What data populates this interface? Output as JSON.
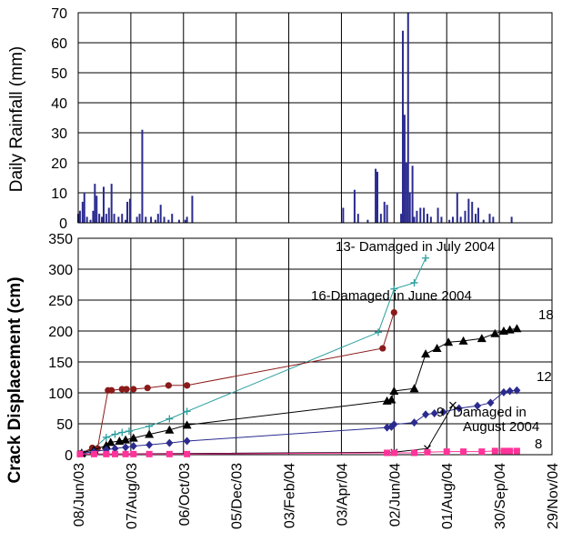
{
  "chart_data": [
    {
      "type": "bar",
      "ylabel": "Daily Rainfall (mm)",
      "ylim": [
        0,
        70
      ],
      "yticks": [
        "0",
        "10",
        "20",
        "30",
        "40",
        "50",
        "60",
        "70"
      ],
      "grid": true,
      "bar_color": "#2b2b8f",
      "bars": [
        {
          "x": "2003-06-08",
          "y": 3
        },
        {
          "x": "2003-06-10",
          "y": 4
        },
        {
          "x": "2003-06-13",
          "y": 7
        },
        {
          "x": "2003-06-15",
          "y": 10
        },
        {
          "x": "2003-06-18",
          "y": 2
        },
        {
          "x": "2003-06-22",
          "y": 1
        },
        {
          "x": "2003-06-25",
          "y": 4
        },
        {
          "x": "2003-06-27",
          "y": 13
        },
        {
          "x": "2003-06-29",
          "y": 9
        },
        {
          "x": "2003-07-02",
          "y": 3
        },
        {
          "x": "2003-07-05",
          "y": 2
        },
        {
          "x": "2003-07-07",
          "y": 12
        },
        {
          "x": "2003-07-10",
          "y": 3
        },
        {
          "x": "2003-07-13",
          "y": 5
        },
        {
          "x": "2003-07-16",
          "y": 13
        },
        {
          "x": "2003-07-19",
          "y": 3
        },
        {
          "x": "2003-07-24",
          "y": 2
        },
        {
          "x": "2003-07-28",
          "y": 3
        },
        {
          "x": "2003-08-01",
          "y": 1
        },
        {
          "x": "2003-08-03",
          "y": 7
        },
        {
          "x": "2003-08-06",
          "y": 8
        },
        {
          "x": "2003-08-14",
          "y": 2
        },
        {
          "x": "2003-08-17",
          "y": 3
        },
        {
          "x": "2003-08-20",
          "y": 31
        },
        {
          "x": "2003-08-24",
          "y": 2
        },
        {
          "x": "2003-08-30",
          "y": 2
        },
        {
          "x": "2003-09-04",
          "y": 1
        },
        {
          "x": "2003-09-07",
          "y": 3
        },
        {
          "x": "2003-09-10",
          "y": 6
        },
        {
          "x": "2003-09-14",
          "y": 2
        },
        {
          "x": "2003-09-19",
          "y": 1
        },
        {
          "x": "2003-09-23",
          "y": 3
        },
        {
          "x": "2003-10-01",
          "y": 1
        },
        {
          "x": "2003-10-08",
          "y": 1
        },
        {
          "x": "2003-10-10",
          "y": 2
        },
        {
          "x": "2003-10-16",
          "y": 9
        },
        {
          "x": "2004-04-05",
          "y": 5
        },
        {
          "x": "2004-04-18",
          "y": 11
        },
        {
          "x": "2004-04-22",
          "y": 3
        },
        {
          "x": "2004-05-03",
          "y": 1
        },
        {
          "x": "2004-05-12",
          "y": 18
        },
        {
          "x": "2004-05-14",
          "y": 17
        },
        {
          "x": "2004-05-18",
          "y": 3
        },
        {
          "x": "2004-05-22",
          "y": 7
        },
        {
          "x": "2004-05-25",
          "y": 6
        },
        {
          "x": "2004-06-10",
          "y": 3
        },
        {
          "x": "2004-06-12",
          "y": 64
        },
        {
          "x": "2004-06-14",
          "y": 36
        },
        {
          "x": "2004-06-16",
          "y": 20
        },
        {
          "x": "2004-06-18",
          "y": 70
        },
        {
          "x": "2004-06-20",
          "y": 10
        },
        {
          "x": "2004-06-23",
          "y": 19
        },
        {
          "x": "2004-06-25",
          "y": 2
        },
        {
          "x": "2004-06-28",
          "y": 4
        },
        {
          "x": "2004-07-02",
          "y": 5
        },
        {
          "x": "2004-07-06",
          "y": 5
        },
        {
          "x": "2004-07-10",
          "y": 3
        },
        {
          "x": "2004-07-14",
          "y": 2
        },
        {
          "x": "2004-07-22",
          "y": 5
        },
        {
          "x": "2004-07-26",
          "y": 2
        },
        {
          "x": "2004-08-04",
          "y": 1
        },
        {
          "x": "2004-08-08",
          "y": 2
        },
        {
          "x": "2004-08-13",
          "y": 10
        },
        {
          "x": "2004-08-17",
          "y": 2
        },
        {
          "x": "2004-08-22",
          "y": 4
        },
        {
          "x": "2004-08-26",
          "y": 8
        },
        {
          "x": "2004-08-30",
          "y": 7
        },
        {
          "x": "2004-09-03",
          "y": 3
        },
        {
          "x": "2004-09-06",
          "y": 5
        },
        {
          "x": "2004-09-12",
          "y": 1
        },
        {
          "x": "2004-09-19",
          "y": 3
        },
        {
          "x": "2004-09-23",
          "y": 2
        },
        {
          "x": "2004-10-14",
          "y": 2
        }
      ]
    },
    {
      "type": "line",
      "ylabel": "Crack Displacement (cm)",
      "ylim": [
        0,
        350
      ],
      "yticks": [
        "0",
        "50",
        "100",
        "150",
        "200",
        "250",
        "300",
        "350"
      ],
      "xlim": [
        "2003-06-08",
        "2004-11-29"
      ],
      "xticks": [
        {
          "date": "2003-06-08",
          "label": "08/Jun/03"
        },
        {
          "date": "2003-08-07",
          "label": "07/Aug/03"
        },
        {
          "date": "2003-10-06",
          "label": "06/Oct/03"
        },
        {
          "date": "2003-12-05",
          "label": "05/Dec/03"
        },
        {
          "date": "2004-02-03",
          "label": "03/Feb/04"
        },
        {
          "date": "2004-04-03",
          "label": "03/Apr/04"
        },
        {
          "date": "2004-06-02",
          "label": "02/Jun/04"
        },
        {
          "date": "2004-08-01",
          "label": "01/Aug/04"
        },
        {
          "date": "2004-09-30",
          "label": "30/Sep/04"
        },
        {
          "date": "2004-11-29",
          "label": "29/Nov/04"
        }
      ],
      "grid": true,
      "series": [
        {
          "name": "13- Damaged  in July 2004",
          "color": "#2a9d9d",
          "marker": "plus",
          "points": [
            {
              "x": "2003-06-12",
              "y": 3
            },
            {
              "x": "2003-06-24",
              "y": 8
            },
            {
              "x": "2003-07-10",
              "y": 28
            },
            {
              "x": "2003-07-20",
              "y": 33
            },
            {
              "x": "2003-07-28",
              "y": 36
            },
            {
              "x": "2003-08-05",
              "y": 38
            },
            {
              "x": "2003-08-28",
              "y": 46
            },
            {
              "x": "2003-09-20",
              "y": 58
            },
            {
              "x": "2003-10-10",
              "y": 70
            },
            {
              "x": "2004-05-15",
              "y": 198
            },
            {
              "x": "2004-06-02",
              "y": 268
            },
            {
              "x": "2004-06-25",
              "y": 278
            },
            {
              "x": "2004-07-08",
              "y": 318
            }
          ]
        },
        {
          "name": "16-Damaged in June 2004",
          "color": "#8b1a1a",
          "marker": "circle",
          "points": [
            {
              "x": "2003-06-11",
              "y": 2
            },
            {
              "x": "2003-06-24",
              "y": 11
            },
            {
              "x": "2003-06-30",
              "y": 10
            },
            {
              "x": "2003-07-12",
              "y": 104
            },
            {
              "x": "2003-07-16",
              "y": 104
            },
            {
              "x": "2003-07-28",
              "y": 106
            },
            {
              "x": "2003-08-02",
              "y": 106
            },
            {
              "x": "2003-08-10",
              "y": 106
            },
            {
              "x": "2003-08-26",
              "y": 108
            },
            {
              "x": "2003-09-19",
              "y": 112
            },
            {
              "x": "2003-10-10",
              "y": 112
            },
            {
              "x": "2004-05-20",
              "y": 172
            },
            {
              "x": "2004-06-02",
              "y": 230
            }
          ]
        },
        {
          "name": "18",
          "color": "#000000",
          "marker": "triangle",
          "points": [
            {
              "x": "2003-06-12",
              "y": 3
            },
            {
              "x": "2003-06-26",
              "y": 8
            },
            {
              "x": "2003-07-10",
              "y": 15
            },
            {
              "x": "2003-07-15",
              "y": 20
            },
            {
              "x": "2003-07-25",
              "y": 22
            },
            {
              "x": "2003-08-01",
              "y": 24
            },
            {
              "x": "2003-08-10",
              "y": 27
            },
            {
              "x": "2003-08-28",
              "y": 33
            },
            {
              "x": "2003-09-20",
              "y": 40
            },
            {
              "x": "2003-10-10",
              "y": 48
            },
            {
              "x": "2004-05-25",
              "y": 87
            },
            {
              "x": "2004-05-30",
              "y": 89
            },
            {
              "x": "2004-06-02",
              "y": 103
            },
            {
              "x": "2004-06-25",
              "y": 107
            },
            {
              "x": "2004-07-08",
              "y": 163
            },
            {
              "x": "2004-07-21",
              "y": 172
            },
            {
              "x": "2004-08-03",
              "y": 182
            },
            {
              "x": "2004-08-20",
              "y": 184
            },
            {
              "x": "2004-09-10",
              "y": 188
            },
            {
              "x": "2004-09-25",
              "y": 196
            },
            {
              "x": "2004-10-05",
              "y": 200
            },
            {
              "x": "2004-10-12",
              "y": 202
            },
            {
              "x": "2004-10-20",
              "y": 204
            }
          ]
        },
        {
          "name": "12",
          "color": "#2b2b8f",
          "marker": "diamond",
          "points": [
            {
              "x": "2003-06-12",
              "y": 2
            },
            {
              "x": "2003-06-26",
              "y": 5
            },
            {
              "x": "2003-07-10",
              "y": 8
            },
            {
              "x": "2003-07-20",
              "y": 10
            },
            {
              "x": "2003-08-01",
              "y": 12
            },
            {
              "x": "2003-08-10",
              "y": 14
            },
            {
              "x": "2003-08-28",
              "y": 16
            },
            {
              "x": "2003-09-20",
              "y": 19
            },
            {
              "x": "2003-10-10",
              "y": 22
            },
            {
              "x": "2004-05-25",
              "y": 44
            },
            {
              "x": "2004-05-30",
              "y": 45
            },
            {
              "x": "2004-06-02",
              "y": 49
            },
            {
              "x": "2004-06-25",
              "y": 52
            },
            {
              "x": "2004-07-08",
              "y": 65
            },
            {
              "x": "2004-07-18",
              "y": 67
            },
            {
              "x": "2004-07-28",
              "y": 69
            },
            {
              "x": "2004-08-15",
              "y": 75
            },
            {
              "x": "2004-09-05",
              "y": 79
            },
            {
              "x": "2004-09-20",
              "y": 84
            },
            {
              "x": "2004-10-05",
              "y": 101
            },
            {
              "x": "2004-10-12",
              "y": 103
            },
            {
              "x": "2004-10-20",
              "y": 104
            }
          ]
        },
        {
          "name": "9",
          "color": "#000000",
          "marker": "cross",
          "points": [
            {
              "x": "2003-06-12",
              "y": 1
            },
            {
              "x": "2004-06-02",
              "y": 4
            },
            {
              "x": "2004-07-10",
              "y": 10
            },
            {
              "x": "2004-08-08",
              "y": 80
            }
          ]
        },
        {
          "name": "8",
          "color": "#ff3399",
          "marker": "square",
          "points": [
            {
              "x": "2003-06-10",
              "y": 1
            },
            {
              "x": "2003-06-26",
              "y": 1
            },
            {
              "x": "2003-07-10",
              "y": 1
            },
            {
              "x": "2003-07-20",
              "y": 1
            },
            {
              "x": "2003-08-01",
              "y": 1
            },
            {
              "x": "2003-08-10",
              "y": 1
            },
            {
              "x": "2003-08-28",
              "y": 1
            },
            {
              "x": "2003-09-20",
              "y": 1
            },
            {
              "x": "2003-10-10",
              "y": 1
            },
            {
              "x": "2004-05-25",
              "y": 3
            },
            {
              "x": "2004-06-02",
              "y": 3
            },
            {
              "x": "2004-06-25",
              "y": 3
            },
            {
              "x": "2004-07-10",
              "y": 4
            },
            {
              "x": "2004-08-01",
              "y": 5
            },
            {
              "x": "2004-08-20",
              "y": 5
            },
            {
              "x": "2004-09-10",
              "y": 5
            },
            {
              "x": "2004-09-25",
              "y": 6
            },
            {
              "x": "2004-10-05",
              "y": 6
            },
            {
              "x": "2004-10-12",
              "y": 6
            },
            {
              "x": "2004-10-20",
              "y": 6
            }
          ]
        }
      ],
      "annotations": [
        "13- Damaged  in July 2004",
        "16-Damaged in June 2004",
        "18",
        "12",
        "Damaged  in",
        "August 2004",
        "9",
        "8"
      ]
    }
  ]
}
